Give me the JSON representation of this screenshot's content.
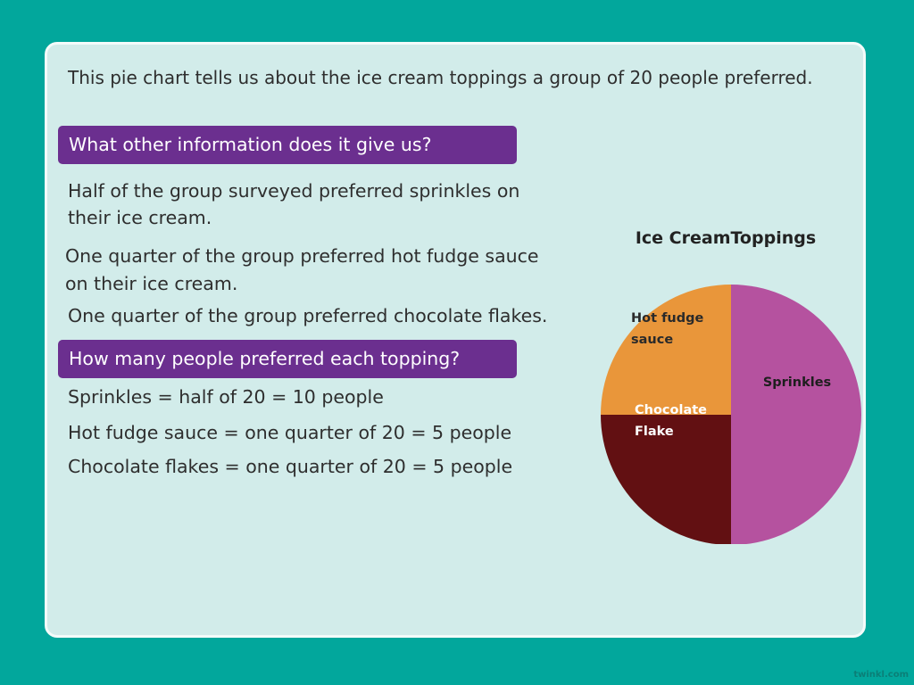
{
  "intro": "This pie chart tells us about the ice cream toppings a group of 20 people preferred.",
  "section1": {
    "heading": "What other information does it give us?",
    "lines": [
      "Half of the group surveyed preferred sprinkles on",
      "their ice cream.",
      "One quarter of the group preferred hot fudge sauce",
      "on their ice cream.",
      "One quarter of the group preferred chocolate flakes."
    ]
  },
  "section2": {
    "heading": "How many people preferred each topping?",
    "lines": [
      "Sprinkles = half of 20 = 10 people",
      "Hot fudge sauce = one quarter of 20 = 5 people",
      "Chocolate flakes = one quarter of 20 = 5 people"
    ]
  },
  "colors": {
    "background": "#02a79c",
    "card": "#d2ecea",
    "heading_bar": "#6b2f8f"
  },
  "chart_data": {
    "type": "pie",
    "title": "Ice CreamToppings",
    "slices": [
      {
        "label": "Sprinkles",
        "value": 10,
        "color": "#b5529f",
        "label_color": "#1e1e1e"
      },
      {
        "label": "Chocolate Flake",
        "value": 5,
        "color": "#621012",
        "label_color": "#ffffff"
      },
      {
        "label": "Hot fudge sauce",
        "value": 5,
        "color": "#e9963a",
        "label_color": "#2a2a2a"
      }
    ]
  },
  "footer": "twinkl.com"
}
